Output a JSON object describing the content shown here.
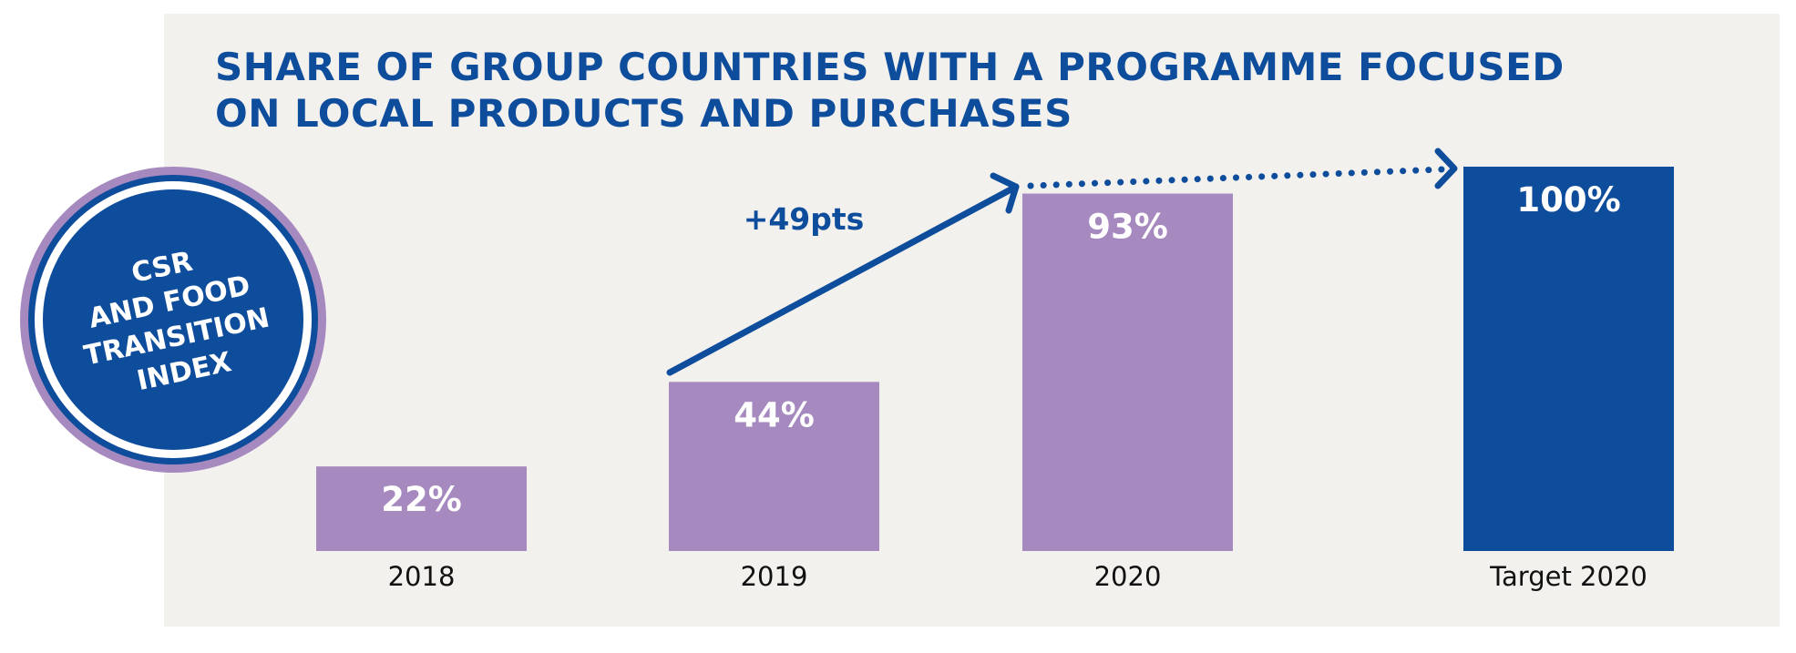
{
  "colors": {
    "primary_blue": "#0e4c9c",
    "bar_purple": "#a68abf",
    "panel_bg": "#f2f1ee"
  },
  "badge": {
    "lines": [
      "CSR",
      "AND FOOD",
      "TRANSITION",
      "INDEX"
    ]
  },
  "annotation": {
    "change_label": "+49pts"
  },
  "chart_data": {
    "type": "bar",
    "title": "SHARE OF GROUP COUNTRIES WITH A PROGRAMME FOCUSED ON LOCAL PRODUCTS AND PURCHASES",
    "title_lines": [
      "SHARE OF GROUP COUNTRIES WITH A PROGRAMME FOCUSED",
      "ON LOCAL PRODUCTS AND PURCHASES"
    ],
    "categories": [
      "2018",
      "2019",
      "2020",
      "Target 2020"
    ],
    "values": [
      22,
      44,
      93,
      100
    ],
    "value_labels": [
      "22%",
      "44%",
      "93%",
      "100%"
    ],
    "bar_colors": [
      "#a68abf",
      "#a68abf",
      "#a68abf",
      "#0e4c9c"
    ],
    "unit": "%",
    "ylim": [
      0,
      100
    ],
    "xlabel": "",
    "ylabel": "",
    "grid": false
  }
}
